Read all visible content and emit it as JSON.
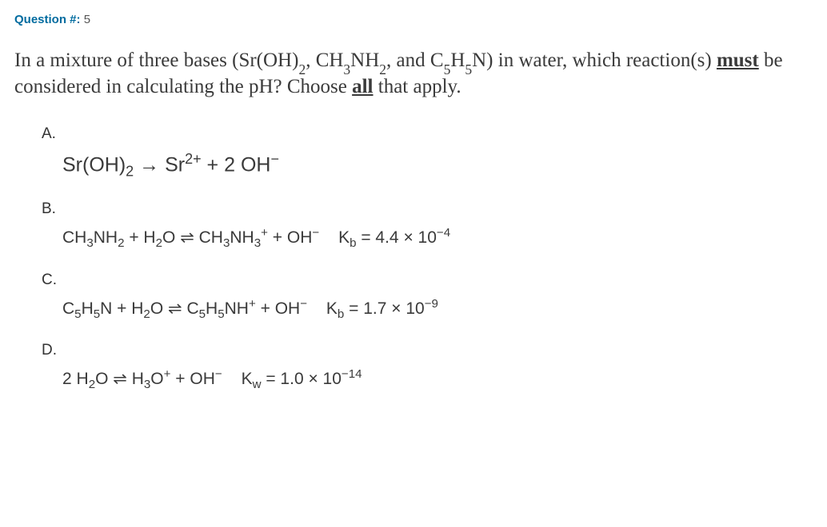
{
  "header": {
    "label": "Question #:",
    "number": "5"
  },
  "question": {
    "pre": "In a mixture of three bases (Sr(OH)",
    "formula1_sub": "2",
    "mid1": ", CH",
    "formula2_sub1": "3",
    "mid2": "NH",
    "formula2_sub2": "2",
    "mid3": ", and C",
    "formula3_sub1": "5",
    "mid4": "H",
    "formula3_sub2": "5",
    "mid5": "N) in water, which reaction(s) ",
    "must": "must",
    "mid6": " be considered in calculating the pH? Choose ",
    "all": "all",
    "tail": " that apply."
  },
  "options": {
    "A": {
      "label": "A.",
      "lhs1": "Sr(OH)",
      "lhs1_sub": "2",
      "arrow": " → ",
      "rhs1": "Sr",
      "rhs1_sup": "2+",
      "plus": " + 2 OH",
      "oh_sup": "−"
    },
    "B": {
      "label": "B.",
      "p1": "CH",
      "s1": "3",
      "p2": "NH",
      "s2": "2",
      "plus1": " + H",
      "s3": "2",
      "p3": "O ",
      "eq": "⇌",
      "r1": " CH",
      "rs1": "3",
      "r2": "NH",
      "rs2": "3",
      "rsup1": "+",
      "plus2": " + OH",
      "ohsup": "−",
      "ksym": "K",
      "ksub": "b",
      "keq": " = 4.4 × 10",
      "kexp": "−4"
    },
    "C": {
      "label": "C.",
      "p1": "C",
      "s1": "5",
      "p2": "H",
      "s2": "5",
      "p3": "N + H",
      "s3": "2",
      "p4": "O ",
      "eq": "⇌",
      "r1": " C",
      "rs1": "5",
      "r2": "H",
      "rs2": "5",
      "r3": "NH",
      "rsup1": "+",
      "plus2": " + OH",
      "ohsup": "−",
      "ksym": "K",
      "ksub": "b",
      "keq": " = 1.7 × 10",
      "kexp": "−9"
    },
    "D": {
      "label": "D.",
      "p1": "2 H",
      "s1": "2",
      "p2": "O ",
      "eq": "⇌",
      "r1": " H",
      "rs1": "3",
      "r2": "O",
      "rsup1": "+",
      "plus2": " + OH",
      "ohsup": "−",
      "ksym": "K",
      "ksub": "w",
      "keq": " = 1.0 × 10",
      "kexp": "−14"
    }
  }
}
